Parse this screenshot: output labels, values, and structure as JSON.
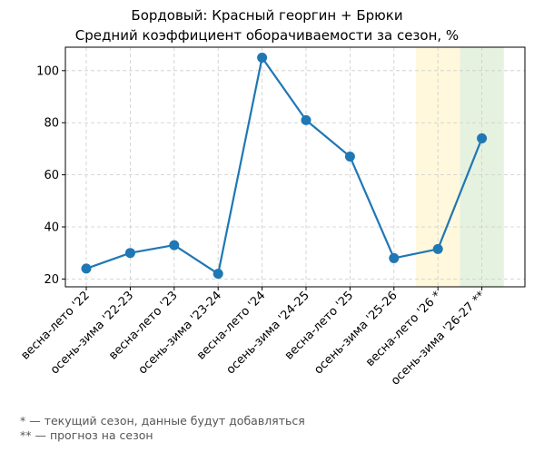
{
  "chart_data": {
    "type": "line",
    "title": "Бордовый: Красный георгин + Брюки",
    "subtitle": "Средний коэффициент оборачиваемости за сезон, %",
    "xlabel": "",
    "ylabel": "",
    "categories": [
      "весна-лето '22",
      "осень-зима '22-23",
      "весна-лето '23",
      "осень-зима '23-24",
      "весна-лето '24",
      "осень-зима '24-25",
      "весна-лето '25",
      "осень-зима '25-26",
      "весна-лето '26 *",
      "осень-зима '26-27 **"
    ],
    "values": [
      24,
      30,
      33,
      22,
      105,
      81,
      67,
      28,
      31.5,
      74
    ],
    "ylim": [
      17,
      109
    ],
    "yticks": [
      20,
      40,
      60,
      80,
      100
    ],
    "grid": true,
    "line_color": "#1f77b4",
    "highlights": [
      {
        "category_index": 8,
        "color": "#fff8dc",
        "meaning": "current season"
      },
      {
        "category_index": 9,
        "color": "#e6f2e0",
        "meaning": "forecast"
      }
    ]
  },
  "footnotes": [
    "* — текущий сезон, данные будут добавляться",
    "** — прогноз на сезон"
  ]
}
